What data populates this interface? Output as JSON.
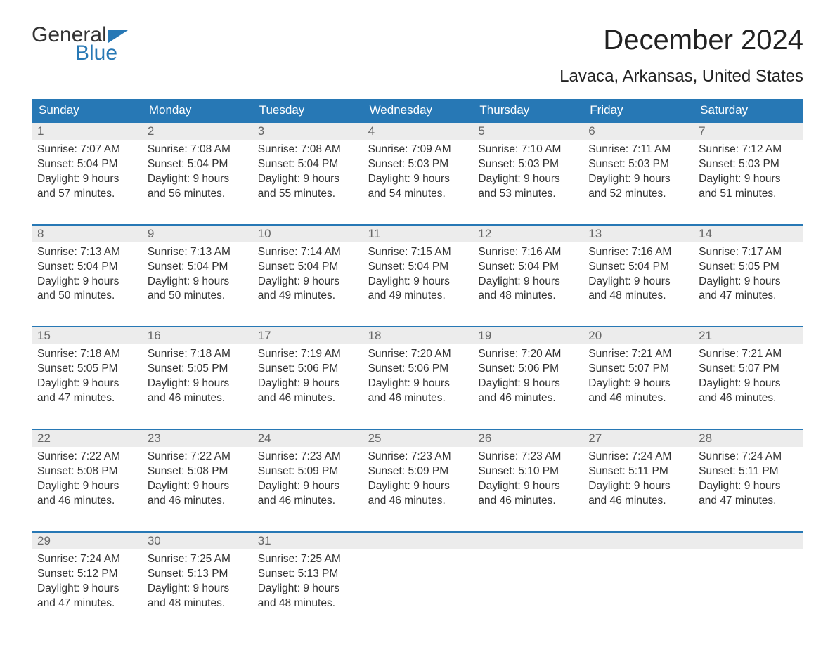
{
  "brand": {
    "word1": "General",
    "word2": "Blue",
    "color": "#2778b5"
  },
  "title": "December 2024",
  "subtitle": "Lavaca, Arkansas, United States",
  "colors": {
    "header_bg": "#2778b5",
    "header_text": "#ffffff",
    "daynum_bg": "#ececec",
    "daynum_text": "#666666",
    "body_text": "#333333",
    "page_bg": "#ffffff"
  },
  "fontsize": {
    "title": 40,
    "subtitle": 24,
    "header": 17,
    "daynum": 17,
    "cell": 15.5
  },
  "day_headers": [
    "Sunday",
    "Monday",
    "Tuesday",
    "Wednesday",
    "Thursday",
    "Friday",
    "Saturday"
  ],
  "weeks": [
    [
      {
        "n": "1",
        "sunrise": "7:07 AM",
        "sunset": "5:04 PM",
        "dl1": "9 hours",
        "dl2": "57 minutes."
      },
      {
        "n": "2",
        "sunrise": "7:08 AM",
        "sunset": "5:04 PM",
        "dl1": "9 hours",
        "dl2": "56 minutes."
      },
      {
        "n": "3",
        "sunrise": "7:08 AM",
        "sunset": "5:04 PM",
        "dl1": "9 hours",
        "dl2": "55 minutes."
      },
      {
        "n": "4",
        "sunrise": "7:09 AM",
        "sunset": "5:03 PM",
        "dl1": "9 hours",
        "dl2": "54 minutes."
      },
      {
        "n": "5",
        "sunrise": "7:10 AM",
        "sunset": "5:03 PM",
        "dl1": "9 hours",
        "dl2": "53 minutes."
      },
      {
        "n": "6",
        "sunrise": "7:11 AM",
        "sunset": "5:03 PM",
        "dl1": "9 hours",
        "dl2": "52 minutes."
      },
      {
        "n": "7",
        "sunrise": "7:12 AM",
        "sunset": "5:03 PM",
        "dl1": "9 hours",
        "dl2": "51 minutes."
      }
    ],
    [
      {
        "n": "8",
        "sunrise": "7:13 AM",
        "sunset": "5:04 PM",
        "dl1": "9 hours",
        "dl2": "50 minutes."
      },
      {
        "n": "9",
        "sunrise": "7:13 AM",
        "sunset": "5:04 PM",
        "dl1": "9 hours",
        "dl2": "50 minutes."
      },
      {
        "n": "10",
        "sunrise": "7:14 AM",
        "sunset": "5:04 PM",
        "dl1": "9 hours",
        "dl2": "49 minutes."
      },
      {
        "n": "11",
        "sunrise": "7:15 AM",
        "sunset": "5:04 PM",
        "dl1": "9 hours",
        "dl2": "49 minutes."
      },
      {
        "n": "12",
        "sunrise": "7:16 AM",
        "sunset": "5:04 PM",
        "dl1": "9 hours",
        "dl2": "48 minutes."
      },
      {
        "n": "13",
        "sunrise": "7:16 AM",
        "sunset": "5:04 PM",
        "dl1": "9 hours",
        "dl2": "48 minutes."
      },
      {
        "n": "14",
        "sunrise": "7:17 AM",
        "sunset": "5:05 PM",
        "dl1": "9 hours",
        "dl2": "47 minutes."
      }
    ],
    [
      {
        "n": "15",
        "sunrise": "7:18 AM",
        "sunset": "5:05 PM",
        "dl1": "9 hours",
        "dl2": "47 minutes."
      },
      {
        "n": "16",
        "sunrise": "7:18 AM",
        "sunset": "5:05 PM",
        "dl1": "9 hours",
        "dl2": "46 minutes."
      },
      {
        "n": "17",
        "sunrise": "7:19 AM",
        "sunset": "5:06 PM",
        "dl1": "9 hours",
        "dl2": "46 minutes."
      },
      {
        "n": "18",
        "sunrise": "7:20 AM",
        "sunset": "5:06 PM",
        "dl1": "9 hours",
        "dl2": "46 minutes."
      },
      {
        "n": "19",
        "sunrise": "7:20 AM",
        "sunset": "5:06 PM",
        "dl1": "9 hours",
        "dl2": "46 minutes."
      },
      {
        "n": "20",
        "sunrise": "7:21 AM",
        "sunset": "5:07 PM",
        "dl1": "9 hours",
        "dl2": "46 minutes."
      },
      {
        "n": "21",
        "sunrise": "7:21 AM",
        "sunset": "5:07 PM",
        "dl1": "9 hours",
        "dl2": "46 minutes."
      }
    ],
    [
      {
        "n": "22",
        "sunrise": "7:22 AM",
        "sunset": "5:08 PM",
        "dl1": "9 hours",
        "dl2": "46 minutes."
      },
      {
        "n": "23",
        "sunrise": "7:22 AM",
        "sunset": "5:08 PM",
        "dl1": "9 hours",
        "dl2": "46 minutes."
      },
      {
        "n": "24",
        "sunrise": "7:23 AM",
        "sunset": "5:09 PM",
        "dl1": "9 hours",
        "dl2": "46 minutes."
      },
      {
        "n": "25",
        "sunrise": "7:23 AM",
        "sunset": "5:09 PM",
        "dl1": "9 hours",
        "dl2": "46 minutes."
      },
      {
        "n": "26",
        "sunrise": "7:23 AM",
        "sunset": "5:10 PM",
        "dl1": "9 hours",
        "dl2": "46 minutes."
      },
      {
        "n": "27",
        "sunrise": "7:24 AM",
        "sunset": "5:11 PM",
        "dl1": "9 hours",
        "dl2": "46 minutes."
      },
      {
        "n": "28",
        "sunrise": "7:24 AM",
        "sunset": "5:11 PM",
        "dl1": "9 hours",
        "dl2": "47 minutes."
      }
    ],
    [
      {
        "n": "29",
        "sunrise": "7:24 AM",
        "sunset": "5:12 PM",
        "dl1": "9 hours",
        "dl2": "47 minutes."
      },
      {
        "n": "30",
        "sunrise": "7:25 AM",
        "sunset": "5:13 PM",
        "dl1": "9 hours",
        "dl2": "48 minutes."
      },
      {
        "n": "31",
        "sunrise": "7:25 AM",
        "sunset": "5:13 PM",
        "dl1": "9 hours",
        "dl2": "48 minutes."
      },
      null,
      null,
      null,
      null
    ]
  ],
  "labels": {
    "sunrise": "Sunrise: ",
    "sunset": "Sunset: ",
    "daylight": "Daylight: ",
    "and": "and "
  }
}
